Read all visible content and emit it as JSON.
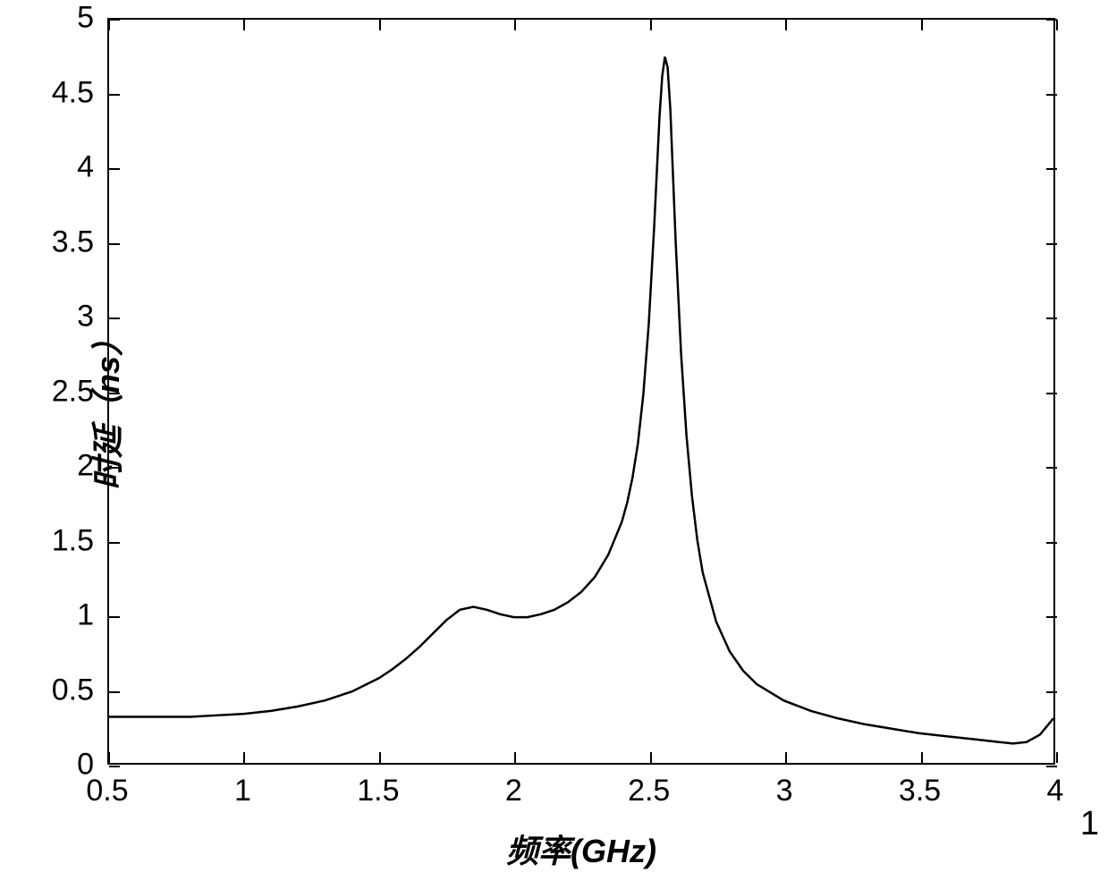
{
  "chart": {
    "type": "line",
    "xlabel": "频率(GHz)",
    "ylabel": "时延（ns）",
    "xlim": [
      0.5,
      4.0
    ],
    "ylim": [
      0,
      5
    ],
    "xtick_labels": [
      "0.5",
      "1",
      "1.5",
      "2",
      "2.5",
      "3",
      "3.5",
      "4"
    ],
    "xtick_values": [
      0.5,
      1.0,
      1.5,
      2.0,
      2.5,
      3.0,
      3.5,
      4.0
    ],
    "ytick_labels": [
      "0",
      "0.5",
      "1",
      "1.5",
      "2",
      "2.5",
      "3",
      "3.5",
      "4",
      "4.5",
      "5"
    ],
    "ytick_values": [
      0,
      0.5,
      1.0,
      1.5,
      2.0,
      2.5,
      3.0,
      3.5,
      4.0,
      4.5,
      5.0
    ],
    "background_color": "#ffffff",
    "border_color": "#000000",
    "line_color": "#000000",
    "line_width": 2.5,
    "label_fontsize": 36,
    "tick_fontsize": 34,
    "data": {
      "x": [
        0.5,
        0.6,
        0.7,
        0.8,
        0.9,
        1.0,
        1.1,
        1.2,
        1.3,
        1.4,
        1.5,
        1.55,
        1.6,
        1.65,
        1.7,
        1.75,
        1.8,
        1.85,
        1.9,
        1.95,
        2.0,
        2.05,
        2.1,
        2.15,
        2.2,
        2.25,
        2.3,
        2.35,
        2.4,
        2.42,
        2.44,
        2.46,
        2.48,
        2.5,
        2.52,
        2.54,
        2.55,
        2.56,
        2.57,
        2.58,
        2.59,
        2.6,
        2.62,
        2.64,
        2.66,
        2.68,
        2.7,
        2.75,
        2.8,
        2.85,
        2.9,
        3.0,
        3.1,
        3.2,
        3.3,
        3.4,
        3.5,
        3.6,
        3.7,
        3.8,
        3.85,
        3.9,
        3.95,
        4.0
      ],
      "y": [
        0.31,
        0.31,
        0.31,
        0.31,
        0.32,
        0.33,
        0.35,
        0.38,
        0.42,
        0.48,
        0.57,
        0.63,
        0.7,
        0.78,
        0.87,
        0.96,
        1.03,
        1.05,
        1.03,
        1.0,
        0.98,
        0.98,
        1.0,
        1.03,
        1.08,
        1.15,
        1.25,
        1.4,
        1.62,
        1.75,
        1.92,
        2.15,
        2.48,
        2.95,
        3.6,
        4.35,
        4.62,
        4.75,
        4.68,
        4.4,
        3.95,
        3.5,
        2.75,
        2.2,
        1.8,
        1.5,
        1.28,
        0.95,
        0.75,
        0.62,
        0.53,
        0.42,
        0.35,
        0.3,
        0.26,
        0.23,
        0.2,
        0.18,
        0.16,
        0.14,
        0.13,
        0.14,
        0.19,
        0.3
      ]
    }
  },
  "figure_number": "1"
}
